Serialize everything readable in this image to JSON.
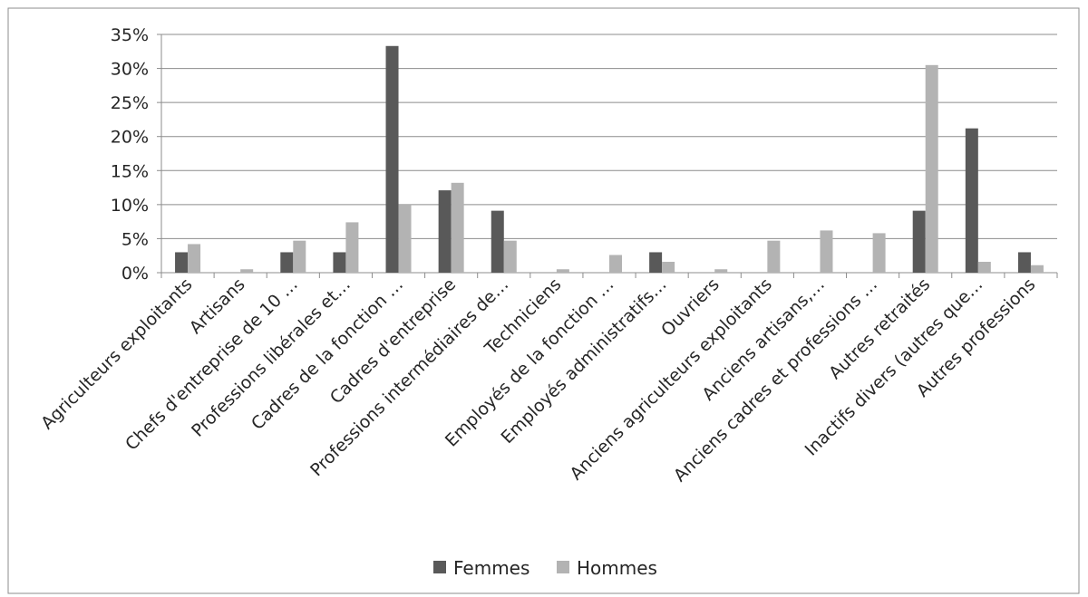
{
  "chart_data": {
    "type": "bar",
    "title": "",
    "xlabel": "",
    "ylabel": "",
    "ylim": [
      0,
      0.35
    ],
    "yticks": [
      0,
      0.05,
      0.1,
      0.15,
      0.2,
      0.25,
      0.3,
      0.35
    ],
    "ytick_labels": [
      "0%",
      "5%",
      "10%",
      "15%",
      "20%",
      "25%",
      "30%",
      "35%"
    ],
    "grid": true,
    "legend_position": "bottom",
    "categories": [
      "Agriculteurs exploitants",
      "Artisans",
      "Chefs d'entreprise de 10 …",
      "Professions libérales et…",
      "Cadres de la fonction …",
      "Cadres d'entreprise",
      "Professions intermédiaires de…",
      "Techniciens",
      "Employés de la fonction …",
      "Employés administratifs…",
      "Ouvriers",
      "Anciens agriculteurs exploitants",
      "Anciens artisans,…",
      "Anciens cadres et professions …",
      "Autres retraités",
      "Inactifs divers (autres que…",
      "Autres professions"
    ],
    "series": [
      {
        "name": "Femmes",
        "color": "#595959",
        "values": [
          0.03,
          0,
          0.03,
          0.03,
          0.333,
          0.121,
          0.091,
          0,
          0,
          0.03,
          0,
          0,
          0,
          0,
          0.091,
          0.212,
          0.03
        ]
      },
      {
        "name": "Hommes",
        "color": "#b3b3b3",
        "values": [
          0.042,
          0.005,
          0.047,
          0.074,
          0.1,
          0.132,
          0.047,
          0.005,
          0.026,
          0.016,
          0.005,
          0.047,
          0.062,
          0.058,
          0.305,
          0.016,
          0.011
        ]
      }
    ]
  }
}
